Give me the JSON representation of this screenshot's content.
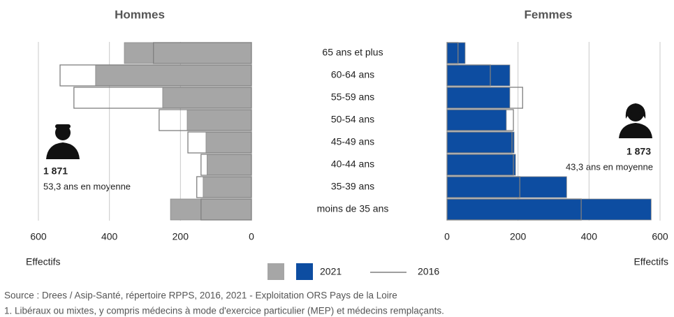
{
  "chart_data": [
    {
      "type": "bar",
      "title": "Hommes",
      "categories": [
        "65 ans et plus",
        "60-64 ans",
        "55-59 ans",
        "50-54 ans",
        "45-49 ans",
        "40-44 ans",
        "35-39 ans",
        "moins de 35 ans"
      ],
      "series": [
        {
          "name": "2021",
          "color": "#a6a6a6",
          "values": [
            358,
            439,
            250,
            181,
            128,
            125,
            136,
            228
          ]
        },
        {
          "name": "2016",
          "color": "#7f7f7f",
          "values": [
            276,
            539,
            500,
            260,
            179,
            142,
            154,
            142
          ]
        }
      ],
      "xlim": [
        600,
        0
      ],
      "xticks": [
        600,
        400,
        200,
        0
      ],
      "xlabel": "Effectifs",
      "grid": true,
      "total": {
        "value": 1871,
        "label": "1 871"
      },
      "annotation": "53,3 ans en moyenne"
    },
    {
      "type": "bar",
      "title": "Femmes",
      "series": [
        {
          "name": "2021",
          "color": "#0d4da1",
          "values": [
            51,
            177,
            177,
            167,
            189,
            193,
            337,
            575
          ]
        },
        {
          "name": "2016",
          "color": "#7f7f7f",
          "values": [
            31,
            122,
            213,
            187,
            183,
            187,
            205,
            378
          ]
        }
      ],
      "xlim": [
        0,
        600
      ],
      "xticks": [
        0,
        200,
        400,
        600
      ],
      "xlabel": "Effectifs",
      "grid": true,
      "total": {
        "value": 1873,
        "label": "1 873"
      },
      "annotation": "43,3 ans en moyenne"
    }
  ],
  "source": "Source : Drees / Asip-Santé, répertoire RPPS, 2016, 2021 - Exploitation ORS Pays de la Loire",
  "note": "1. Libéraux ou mixtes, y compris médecins à mode d'exercice particulier (MEP) et médecins remplaçants."
}
